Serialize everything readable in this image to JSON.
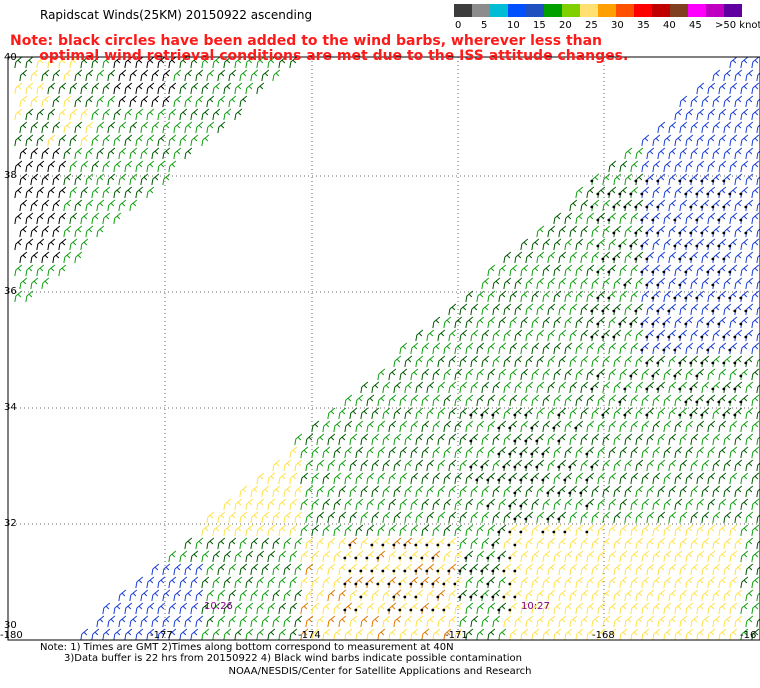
{
  "title": "Rapidscat Winds(25KM) 20150922 ascending",
  "note": "Note: black circles have been added to the wind barbs, wherever less than\n      optimal wind retrieval conditions are met due to the ISS attitude changes.",
  "colorbar": {
    "colors": [
      "#3c3c3c",
      "#8c8c8c",
      "#00bcd4",
      "#0050ff",
      "#2050c0",
      "#00a000",
      "#80d000",
      "#ffe070",
      "#ffa000",
      "#ff5000",
      "#ff0000",
      "#c00000",
      "#804020",
      "#ff00ff",
      "#c000c0",
      "#6000a0"
    ],
    "labels": [
      "0",
      "5",
      "10",
      "15",
      "20",
      "25",
      "30",
      "35",
      "40",
      "45",
      ">50 knots"
    ]
  },
  "axes": {
    "lat_labels": [
      "40",
      "38",
      "36",
      "34",
      "32",
      "30"
    ],
    "lon_labels": [
      "-180",
      "-177",
      "-174",
      "-171",
      "-168",
      "-16"
    ]
  },
  "annotations": [
    "10:26",
    "10:27"
  ],
  "footer": {
    "line1": "Note: 1) Times are GMT 2)Times along bottom correspond to measurement at 40N",
    "line2": "3)Data buffer is 22 hrs from 20150922 4) Black wind barbs indicate possible contamination",
    "credit": "NOAA/NESDIS/Center for Satellite Applications and Research"
  },
  "swath_colors": {
    "blue": "#1a3fd6",
    "green": "#13a013",
    "dark_green": "#005a00",
    "yellow": "#ffe24d",
    "orange": "#e07a00",
    "black": "#000000"
  }
}
